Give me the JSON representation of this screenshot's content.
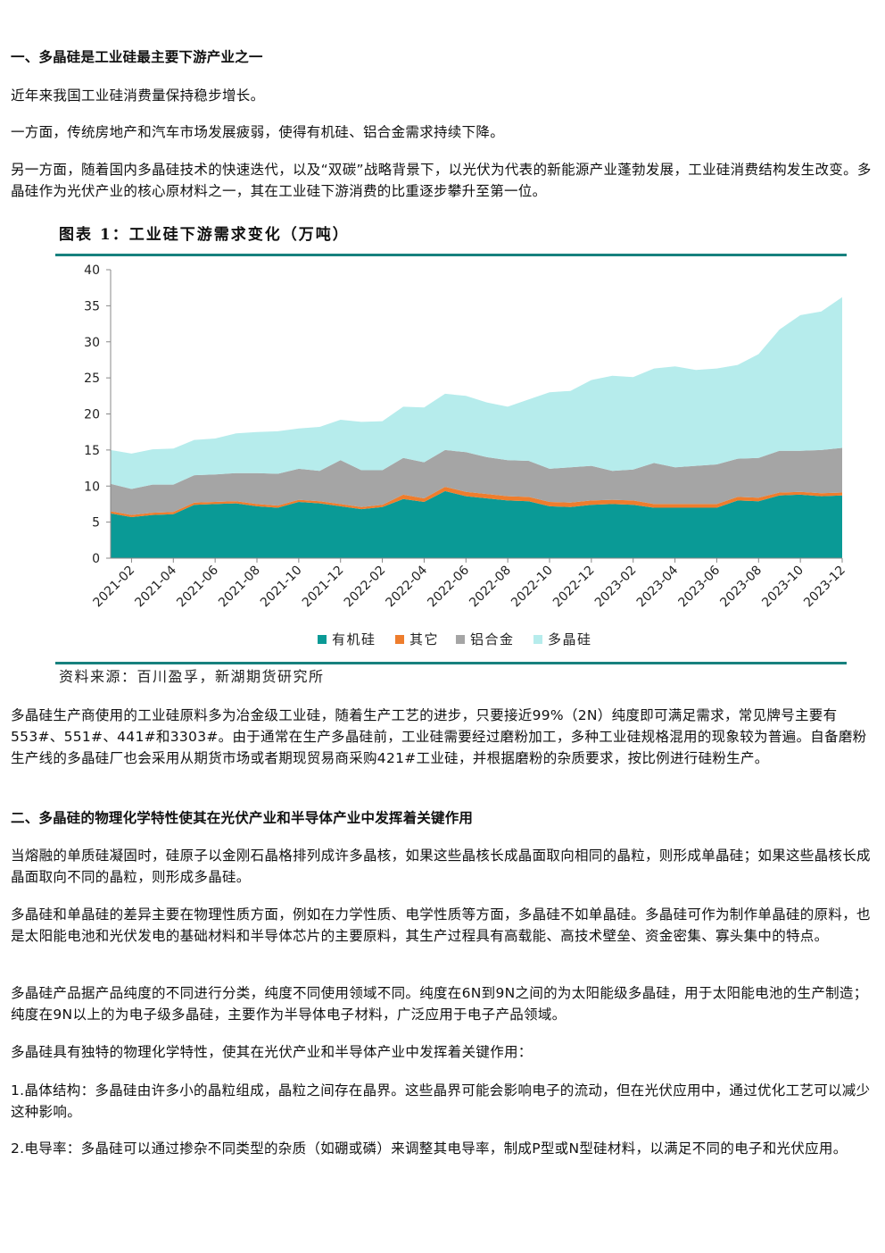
{
  "section1": {
    "heading": "一、多晶硅是工业硅最主要下游产业之一",
    "paragraphs": [
      "近年来我国工业硅消费量保持稳步增长。",
      "一方面，传统房地产和汽车市场发展疲弱，使得有机硅、铝合金需求持续下降。",
      "另一方面，随着国内多晶硅技术的快速迭代，以及“双碳”战略背景下，以光伏为代表的新能源产业蓬勃发展，工业硅消费结构发生改变。多晶硅作为光伏产业的核心原材料之一，其在工业硅下游消费的比重逐步攀升至第一位。"
    ]
  },
  "figure": {
    "title": "图表 1：工业硅下游需求变化（万吨）",
    "source": "资料来源：百川盈孚，新湖期货研究所"
  },
  "after_figure": "多晶硅生产商使用的工业硅原料多为冶金级工业硅，随着生产工艺的进步，只要接近99%（2N）纯度即可满足需求，常见牌号主要有553#、551#、441#和3303#。由于通常在生产多晶硅前，工业硅需要经过磨粉加工，多种工业硅规格混用的现象较为普遍。自备磨粉生产线的多晶硅厂也会采用从期货市场或者期现贸易商采购421#工业硅，并根据磨粉的杂质要求，按比例进行硅粉生产。",
  "section2": {
    "heading": "二、多晶硅的物理化学特性使其在光伏产业和半导体产业中发挥着关键作用",
    "paragraphs": [
      "当熔融的单质硅凝固时，硅原子以金刚石晶格排列成许多晶核，如果这些晶核长成晶面取向相同的晶粒，则形成单晶硅；如果这些晶核长成晶面取向不同的晶粒，则形成多晶硅。",
      "多晶硅和单晶硅的差异主要在物理性质方面，例如在力学性质、电学性质等方面，多晶硅不如单晶硅。多晶硅可作为制作单晶硅的原料，也是太阳能电池和光伏发电的基础材料和半导体芯片的主要原料，其生产过程具有高载能、高技术壁垒、资金密集、寡头集中的特点。",
      "多晶硅产品据产品纯度的不同进行分类，纯度不同使用领域不同。纯度在6N到9N之间的为太阳能级多晶硅，用于太阳能电池的生产制造；纯度在9N以上的为电子级多晶硅，主要作为半导体电子材料，广泛应用于电子产品领域。",
      "多晶硅具有独特的物理化学特性，使其在光伏产业和半导体产业中发挥着关键作用：",
      "1.晶体结构：多晶硅由许多小的晶粒组成，晶粒之间存在晶界。这些晶界可能会影响电子的流动，但在光伏应用中，通过优化工艺可以减少这种影响。",
      "2.电导率：多晶硅可以通过掺杂不同类型的杂质（如硼或磷）来调整其电导率，制成P型或N型硅材料，以满足不同的电子和光伏应用。"
    ]
  },
  "chart_data": {
    "type": "area",
    "stacked": true,
    "title": "图表 1：工业硅下游需求变化（万吨）",
    "ylim": [
      0,
      40
    ],
    "yticks": [
      0,
      5,
      10,
      15,
      20,
      25,
      30,
      35,
      40
    ],
    "x": [
      "2021-01",
      "2021-02",
      "2021-03",
      "2021-04",
      "2021-05",
      "2021-06",
      "2021-07",
      "2021-08",
      "2021-09",
      "2021-10",
      "2021-11",
      "2021-12",
      "2022-01",
      "2022-02",
      "2022-03",
      "2022-04",
      "2022-05",
      "2022-06",
      "2022-07",
      "2022-08",
      "2022-09",
      "2022-10",
      "2022-11",
      "2022-12",
      "2023-01",
      "2023-02",
      "2023-03",
      "2023-04",
      "2023-05",
      "2023-06",
      "2023-07",
      "2023-08",
      "2023-09",
      "2023-10",
      "2023-11",
      "2023-12"
    ],
    "xtick_labels": [
      "2021-02",
      "2021-04",
      "2021-06",
      "2021-08",
      "2021-10",
      "2021-12",
      "2022-02",
      "2022-04",
      "2022-06",
      "2022-08",
      "2022-10",
      "2022-12",
      "2023-02",
      "2023-04",
      "2023-06",
      "2023-08",
      "2023-10",
      "2023-12"
    ],
    "legend_position": "bottom",
    "series": [
      {
        "name": "有机硅",
        "color": "#0a9a96",
        "values": [
          6.2,
          5.7,
          6.0,
          6.1,
          7.4,
          7.5,
          7.6,
          7.2,
          7.0,
          7.8,
          7.6,
          7.2,
          6.8,
          7.1,
          8.2,
          7.8,
          9.3,
          8.6,
          8.3,
          8.0,
          7.9,
          7.2,
          7.1,
          7.4,
          7.5,
          7.4,
          7.0,
          7.0,
          7.0,
          7.0,
          8.0,
          7.9,
          8.7,
          8.8,
          8.6,
          8.7
        ]
      },
      {
        "name": "其它",
        "color": "#ee7d2d",
        "values": [
          0.3,
          0.3,
          0.3,
          0.3,
          0.3,
          0.3,
          0.3,
          0.3,
          0.3,
          0.3,
          0.3,
          0.3,
          0.3,
          0.3,
          0.6,
          0.5,
          0.6,
          0.6,
          0.6,
          0.6,
          0.6,
          0.6,
          0.6,
          0.6,
          0.6,
          0.6,
          0.5,
          0.5,
          0.5,
          0.5,
          0.5,
          0.5,
          0.4,
          0.4,
          0.4,
          0.4
        ]
      },
      {
        "name": "铝合金",
        "color": "#a5a5a5",
        "values": [
          3.8,
          3.6,
          3.9,
          3.8,
          3.8,
          3.8,
          3.9,
          4.3,
          4.4,
          4.3,
          4.2,
          6.1,
          5.1,
          4.8,
          5.1,
          5.0,
          5.1,
          5.5,
          5.1,
          5.0,
          5.0,
          4.6,
          4.9,
          4.8,
          4.0,
          4.3,
          5.7,
          5.1,
          5.3,
          5.5,
          5.3,
          5.5,
          5.8,
          5.7,
          6.0,
          6.2
        ]
      },
      {
        "name": "多晶硅",
        "color": "#b6ecec",
        "values": [
          4.7,
          4.9,
          4.9,
          5.0,
          4.9,
          5.0,
          5.5,
          5.7,
          5.9,
          5.6,
          6.1,
          5.6,
          6.7,
          6.8,
          7.1,
          7.6,
          7.8,
          7.8,
          7.6,
          7.4,
          8.5,
          10.6,
          10.6,
          11.9,
          13.2,
          12.8,
          13.1,
          14.0,
          13.3,
          13.3,
          13.0,
          14.4,
          16.8,
          18.8,
          19.2,
          20.9
        ]
      }
    ]
  }
}
